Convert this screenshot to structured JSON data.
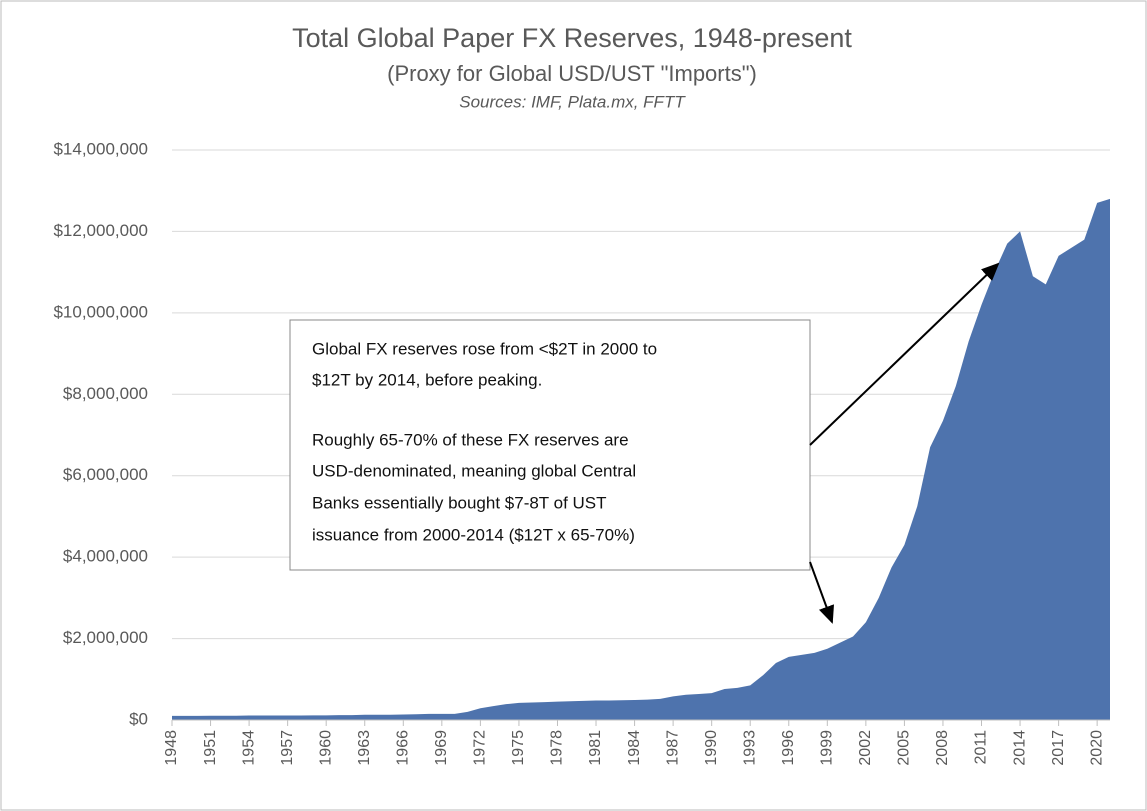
{
  "chart_data": {
    "type": "area",
    "title": "Total Global Paper FX Reserves, 1948-present",
    "subtitle": "(Proxy for Global USD/UST \"Imports\")",
    "source": "Sources: IMF, Plata.mx, FFTT",
    "color": "#4e73ad",
    "x": [
      1948,
      1949,
      1950,
      1951,
      1952,
      1953,
      1954,
      1955,
      1956,
      1957,
      1958,
      1959,
      1960,
      1961,
      1962,
      1963,
      1964,
      1965,
      1966,
      1967,
      1968,
      1969,
      1970,
      1971,
      1972,
      1973,
      1974,
      1975,
      1976,
      1977,
      1978,
      1979,
      1980,
      1981,
      1982,
      1983,
      1984,
      1985,
      1986,
      1987,
      1988,
      1989,
      1990,
      1991,
      1992,
      1993,
      1994,
      1995,
      1996,
      1997,
      1998,
      1999,
      2000,
      2001,
      2002,
      2003,
      2004,
      2005,
      2006,
      2007,
      2008,
      2009,
      2010,
      2011,
      2012,
      2013,
      2014,
      2015,
      2016,
      2017,
      2018,
      2019,
      2020,
      2021
    ],
    "values": [
      100000,
      100000,
      100000,
      105000,
      105000,
      105000,
      110000,
      110000,
      110000,
      110000,
      110000,
      115000,
      115000,
      120000,
      120000,
      130000,
      130000,
      130000,
      135000,
      140000,
      150000,
      150000,
      150000,
      200000,
      290000,
      340000,
      390000,
      420000,
      430000,
      440000,
      450000,
      460000,
      470000,
      480000,
      480000,
      485000,
      490000,
      500000,
      520000,
      580000,
      620000,
      640000,
      660000,
      760000,
      790000,
      850000,
      1100000,
      1400000,
      1550000,
      1600000,
      1650000,
      1750000,
      1900000,
      2050000,
      2400000,
      3000000,
      3750000,
      4300000,
      5250000,
      6700000,
      7350000,
      8200000,
      9300000,
      10200000,
      11000000,
      11700000,
      12000000,
      10900000,
      10700000,
      11400000,
      11600000,
      11800000,
      12700000,
      12800000
    ],
    "xlim": [
      1948,
      2021
    ],
    "xticks": [
      1948,
      1951,
      1954,
      1957,
      1960,
      1963,
      1966,
      1969,
      1972,
      1975,
      1978,
      1981,
      1984,
      1987,
      1990,
      1993,
      1996,
      1999,
      2002,
      2005,
      2008,
      2011,
      2014,
      2017,
      2020
    ],
    "ylim": [
      0,
      14000000
    ],
    "yticks": [
      {
        "value": 0,
        "label": "$0"
      },
      {
        "value": 2000000,
        "label": "$2,000,000"
      },
      {
        "value": 4000000,
        "label": "$4,000,000"
      },
      {
        "value": 6000000,
        "label": "$6,000,000"
      },
      {
        "value": 8000000,
        "label": "$8,000,000"
      },
      {
        "value": 10000000,
        "label": "$10,000,000"
      },
      {
        "value": 12000000,
        "label": "$12,000,000"
      },
      {
        "value": 14000000,
        "label": "$14,000,000"
      }
    ],
    "grid": true,
    "annotation": [
      "Global FX reserves rose from <$2T in 2000 to",
      "$12T by 2014, before peaking.",
      "Roughly 65-70% of these FX reserves are",
      "USD-denominated, meaning global Central",
      "Banks essentially bought $7-8T of UST",
      "issuance from 2000-2014 ($12T x 65-70%)"
    ]
  }
}
